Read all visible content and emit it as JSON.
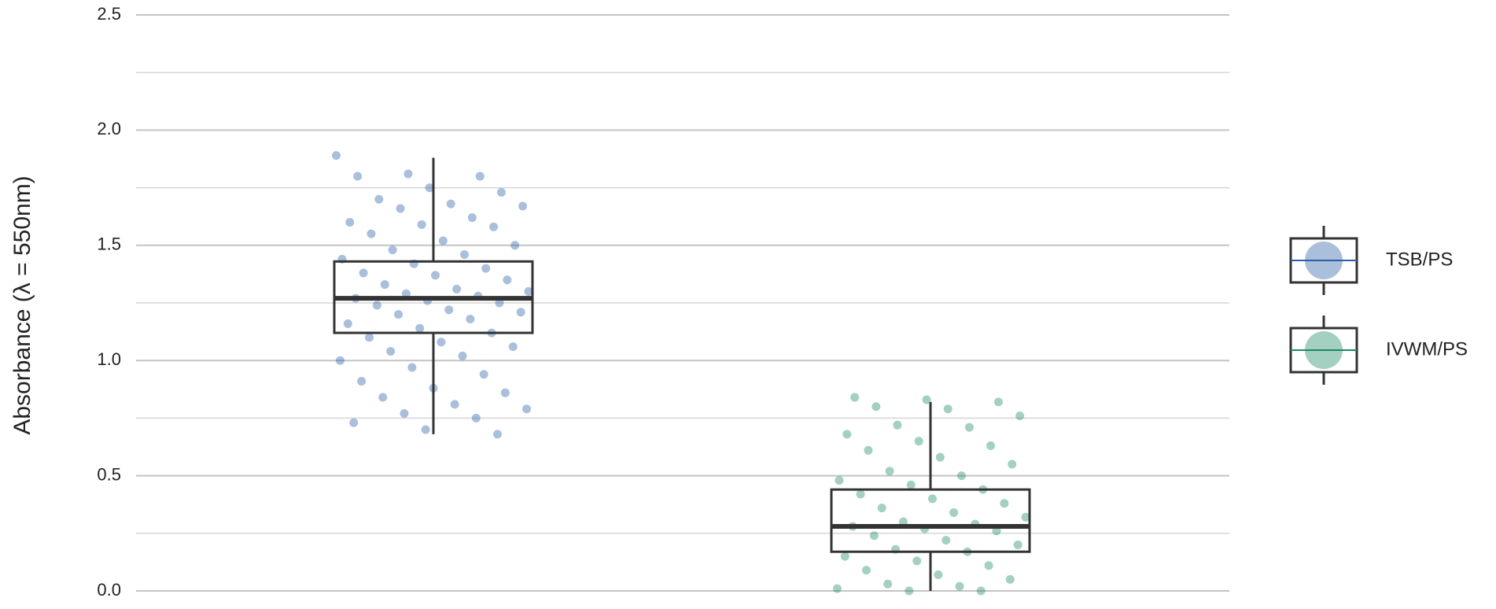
{
  "chart_data": {
    "type": "box",
    "y_label": "Absorbance (λ = 550nm)",
    "ylim": [
      0,
      2.5
    ],
    "yticks": [
      {
        "value": 0,
        "label": "0.0"
      },
      0.5,
      {
        "value": 1,
        "label": "1.0"
      },
      1.5,
      {
        "value": 2,
        "label": "2.0"
      },
      2.5
    ],
    "minor_yticks": [
      0.25,
      0.75,
      1.25,
      1.75,
      2.25
    ],
    "grid": true,
    "legend": "right",
    "series": [
      {
        "name": "TSB/PS",
        "color": "#2b5ea7",
        "box": {
          "min": 0.68,
          "q1": 1.12,
          "median": 1.27,
          "q3": 1.43,
          "max": 1.88
        },
        "points": [
          1.89,
          1.81,
          1.8,
          1.8,
          1.75,
          1.73,
          1.7,
          1.68,
          1.67,
          1.66,
          1.62,
          1.6,
          1.59,
          1.58,
          1.55,
          1.52,
          1.5,
          1.48,
          1.46,
          1.44,
          1.42,
          1.4,
          1.38,
          1.37,
          1.35,
          1.33,
          1.31,
          1.3,
          1.29,
          1.28,
          1.27,
          1.26,
          1.25,
          1.24,
          1.22,
          1.21,
          1.2,
          1.18,
          1.16,
          1.14,
          1.12,
          1.1,
          1.08,
          1.06,
          1.04,
          1.02,
          1.0,
          0.97,
          0.94,
          0.91,
          0.88,
          0.86,
          0.84,
          0.81,
          0.79,
          0.77,
          0.75,
          0.73,
          0.7,
          0.68
        ]
      },
      {
        "name": "IVWM/PS",
        "color": "#1a8a62",
        "box": {
          "min": 0.0,
          "q1": 0.17,
          "median": 0.28,
          "q3": 0.44,
          "max": 0.82
        },
        "points": [
          0.84,
          0.83,
          0.82,
          0.8,
          0.79,
          0.76,
          0.72,
          0.71,
          0.68,
          0.65,
          0.63,
          0.61,
          0.58,
          0.55,
          0.52,
          0.5,
          0.48,
          0.46,
          0.44,
          0.42,
          0.4,
          0.38,
          0.36,
          0.34,
          0.32,
          0.3,
          0.29,
          0.28,
          0.27,
          0.26,
          0.24,
          0.22,
          0.2,
          0.18,
          0.17,
          0.15,
          0.13,
          0.11,
          0.09,
          0.07,
          0.05,
          0.03,
          0.02,
          0.01,
          0.0,
          0.0
        ]
      }
    ]
  }
}
